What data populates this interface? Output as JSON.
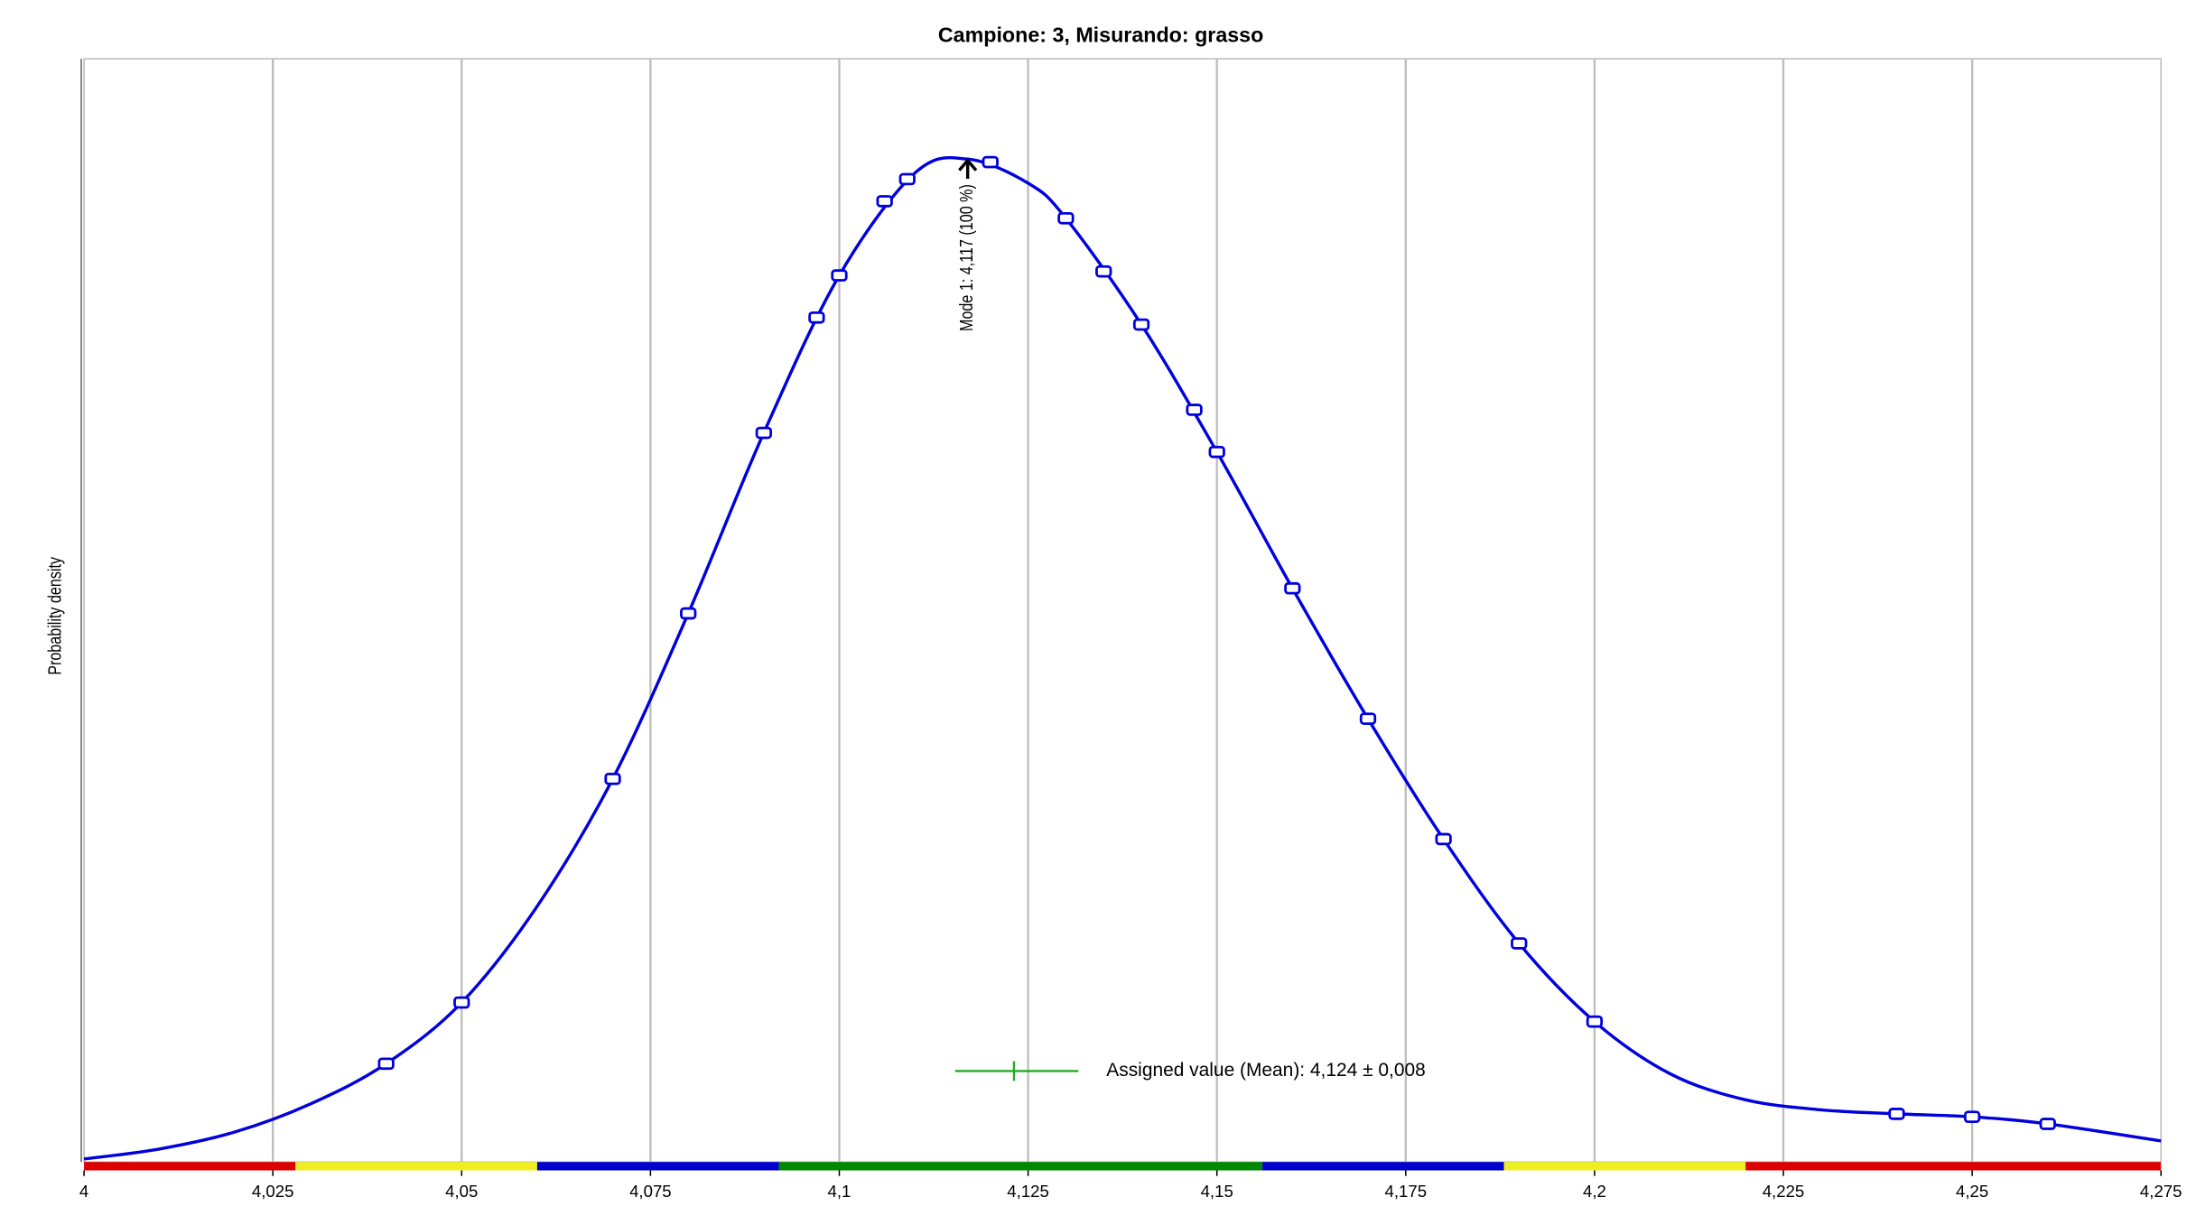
{
  "chart_data": {
    "type": "line",
    "title": "Campione: 3, Misurando: grasso",
    "ylabel": "Probability density",
    "xlim": [
      4,
      4.275
    ],
    "ylim": [
      0,
      110
    ],
    "xticks": [
      4,
      {
        "value": 4.025,
        "label": "4,025"
      },
      {
        "value": 4.05,
        "label": "4,05"
      },
      {
        "value": 4.075,
        "label": "4,075"
      },
      {
        "value": 4.1,
        "label": "4,1"
      },
      {
        "value": 4.125,
        "label": "4,125"
      },
      {
        "value": 4.15,
        "label": "4,15"
      },
      {
        "value": 4.175,
        "label": "4,175"
      },
      {
        "value": 4.2,
        "label": "4,2"
      },
      {
        "value": 4.225,
        "label": "4,225"
      },
      {
        "value": 4.25,
        "label": "4,25"
      },
      {
        "value": 4.275,
        "label": "4,275"
      }
    ],
    "grid": true,
    "series": [
      {
        "color": "#0000dd",
        "x": [
          4,
          4.01,
          4.02,
          4.03,
          4.04,
          4.05,
          4.06,
          4.07,
          4.08,
          4.09,
          4.1,
          4.11,
          4.117,
          4.125,
          4.13,
          4.14,
          4.15,
          4.16,
          4.17,
          4.18,
          4.19,
          4.2,
          4.21,
          4.22,
          4.23,
          4.24,
          4.25,
          4.26,
          4.275
        ],
        "values": [
          0.3,
          1.3,
          3.0,
          5.8,
          9.8,
          15.9,
          25.5,
          38.2,
          54.7,
          72.7,
          88.4,
          98.6,
          100,
          97.6,
          94.1,
          83.5,
          70.8,
          57.2,
          44.2,
          32.2,
          21.8,
          14.0,
          8.8,
          6.2,
          5.2,
          4.8,
          4.5,
          3.8,
          2.1
        ]
      },
      {
        "color": "#0000dd",
        "x": [
          4.04,
          4.05,
          4.07,
          4.08,
          4.09,
          4.097,
          4.1,
          4.106,
          4.109,
          4.12,
          4.13,
          4.135,
          4.14,
          4.147,
          4.15,
          4.16,
          4.17,
          4.18,
          4.19,
          4.2,
          4.24,
          4.25,
          4.26
        ],
        "values": [
          9.8,
          15.9,
          38.2,
          54.7,
          72.7,
          84.2,
          88.4,
          95.8,
          98.0,
          99.7,
          94.1,
          88.8,
          83.5,
          75.0,
          70.8,
          57.2,
          44.2,
          32.2,
          21.8,
          14.0,
          4.8,
          4.5,
          3.8
        ]
      }
    ],
    "bands": [
      {
        "from": 4,
        "to": 4.028,
        "color": "#dd0000"
      },
      {
        "from": 4.028,
        "to": 4.06,
        "color": "#eeee22"
      },
      {
        "from": 4.06,
        "to": 4.092,
        "color": "#0000cc"
      },
      {
        "from": 4.092,
        "to": 4.156,
        "color": "#008800"
      },
      {
        "from": 4.156,
        "to": 4.188,
        "color": "#0000cc"
      },
      {
        "from": 4.188,
        "to": 4.22,
        "color": "#eeee22"
      },
      {
        "from": 4.22,
        "to": 4.275,
        "color": "#dd0000"
      }
    ],
    "annotation": {
      "text": "Mode 1: 4,117 (100 %)",
      "x": 4.117,
      "value": 100
    },
    "legend": {
      "label": "Assigned value (Mean): 4,124 ± 0,008",
      "color": "#22aa22"
    }
  }
}
